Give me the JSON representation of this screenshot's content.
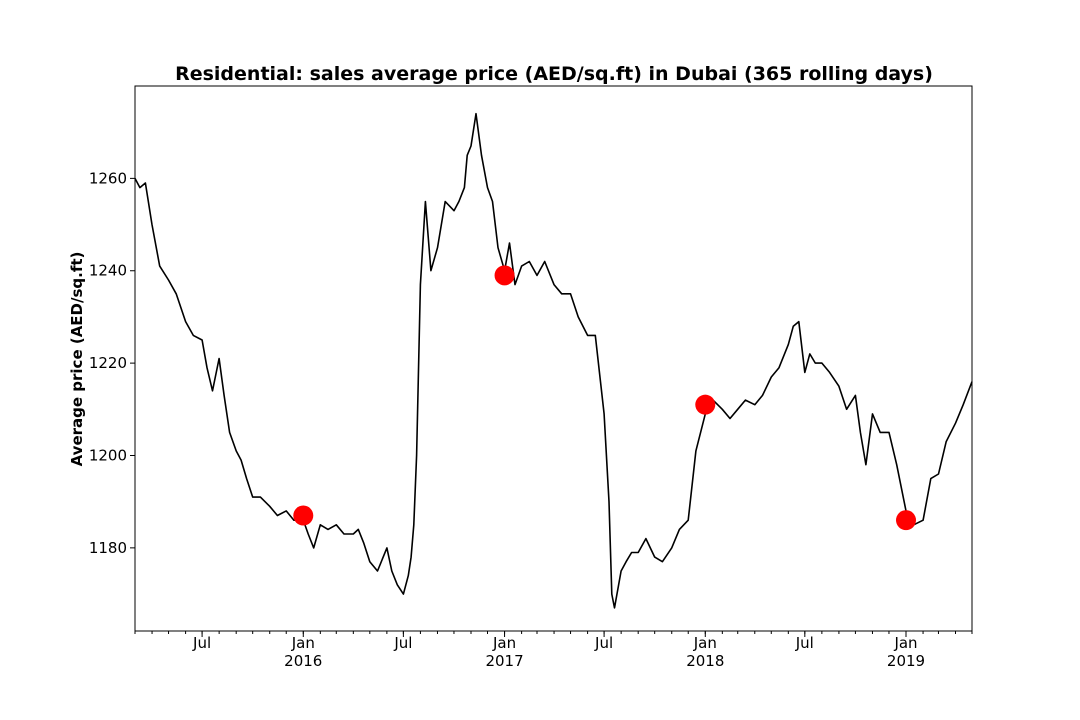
{
  "chart_data": {
    "type": "line",
    "title": "Residential: sales average price (AED/sq.ft) in Dubai (365 rolling days)",
    "xlabel": "",
    "ylabel": "Average price (AED/sq.ft)",
    "xlim": [
      "2015-03-01",
      "2019-05-01"
    ],
    "ylim": [
      1162,
      1280
    ],
    "grid": false,
    "y_ticks": [
      1180,
      1200,
      1220,
      1240,
      1260
    ],
    "x_major_ticks": [
      {
        "date": "2015-07-01",
        "label": "Jul",
        "year": ""
      },
      {
        "date": "2016-01-01",
        "label": "Jan",
        "year": "2016"
      },
      {
        "date": "2016-07-01",
        "label": "Jul",
        "year": ""
      },
      {
        "date": "2017-01-01",
        "label": "Jan",
        "year": "2017"
      },
      {
        "date": "2017-07-01",
        "label": "Jul",
        "year": ""
      },
      {
        "date": "2018-01-01",
        "label": "Jan",
        "year": "2018"
      },
      {
        "date": "2018-07-01",
        "label": "Jul",
        "year": ""
      },
      {
        "date": "2019-01-01",
        "label": "Jan",
        "year": "2019"
      }
    ],
    "series": [
      {
        "color": "#000000",
        "x": [
          "2015-03-01",
          "2015-03-10",
          "2015-03-20",
          "2015-04-01",
          "2015-04-15",
          "2015-05-01",
          "2015-05-15",
          "2015-06-01",
          "2015-06-15",
          "2015-07-01",
          "2015-07-10",
          "2015-07-20",
          "2015-08-01",
          "2015-08-10",
          "2015-08-20",
          "2015-09-01",
          "2015-09-10",
          "2015-09-20",
          "2015-10-01",
          "2015-10-15",
          "2015-11-01",
          "2015-11-15",
          "2015-12-01",
          "2015-12-15",
          "2016-01-01",
          "2016-01-10",
          "2016-01-20",
          "2016-02-01",
          "2016-02-15",
          "2016-03-01",
          "2016-03-15",
          "2016-04-01",
          "2016-04-10",
          "2016-04-20",
          "2016-05-01",
          "2016-05-15",
          "2016-06-01",
          "2016-06-10",
          "2016-06-20",
          "2016-07-01",
          "2016-07-10",
          "2016-07-15",
          "2016-07-20",
          "2016-07-25",
          "2016-08-01",
          "2016-08-10",
          "2016-08-20",
          "2016-09-01",
          "2016-09-15",
          "2016-10-01",
          "2016-10-10",
          "2016-10-20",
          "2016-10-25",
          "2016-11-01",
          "2016-11-10",
          "2016-11-20",
          "2016-12-01",
          "2016-12-10",
          "2016-12-20",
          "2017-01-01",
          "2017-01-10",
          "2017-01-20",
          "2017-02-01",
          "2017-02-15",
          "2017-03-01",
          "2017-03-15",
          "2017-04-01",
          "2017-04-15",
          "2017-05-01",
          "2017-05-15",
          "2017-06-01",
          "2017-06-15",
          "2017-07-01",
          "2017-07-10",
          "2017-07-15",
          "2017-07-20",
          "2017-08-01",
          "2017-08-10",
          "2017-08-20",
          "2017-09-01",
          "2017-09-15",
          "2017-10-01",
          "2017-10-15",
          "2017-11-01",
          "2017-11-15",
          "2017-12-01",
          "2017-12-15",
          "2018-01-01",
          "2018-01-15",
          "2018-02-01",
          "2018-02-15",
          "2018-03-01",
          "2018-03-15",
          "2018-04-01",
          "2018-04-15",
          "2018-05-01",
          "2018-05-15",
          "2018-06-01",
          "2018-06-10",
          "2018-06-20",
          "2018-07-01",
          "2018-07-10",
          "2018-07-20",
          "2018-08-01",
          "2018-08-15",
          "2018-09-01",
          "2018-09-15",
          "2018-10-01",
          "2018-10-10",
          "2018-10-20",
          "2018-11-01",
          "2018-11-15",
          "2018-12-01",
          "2018-12-15",
          "2019-01-01",
          "2019-01-15",
          "2019-02-01",
          "2019-02-15",
          "2019-03-01",
          "2019-03-15",
          "2019-04-01",
          "2019-04-15",
          "2019-05-01"
        ],
        "y": [
          1260,
          1258,
          1259,
          1250,
          1241,
          1238,
          1235,
          1229,
          1226,
          1225,
          1219,
          1214,
          1221,
          1213,
          1205,
          1201,
          1199,
          1195,
          1191,
          1191,
          1189,
          1187,
          1188,
          1186,
          1186,
          1183,
          1180,
          1185,
          1184,
          1185,
          1183,
          1183,
          1184,
          1181,
          1177,
          1175,
          1180,
          1175,
          1172,
          1170,
          1174,
          1178,
          1185,
          1200,
          1237,
          1255,
          1240,
          1245,
          1255,
          1253,
          1255,
          1258,
          1265,
          1267,
          1274,
          1265,
          1258,
          1255,
          1245,
          1240,
          1246,
          1237,
          1241,
          1242,
          1239,
          1242,
          1237,
          1235,
          1235,
          1230,
          1226,
          1226,
          1209,
          1190,
          1170,
          1167,
          1175,
          1177,
          1179,
          1179,
          1182,
          1178,
          1177,
          1180,
          1184,
          1186,
          1201,
          1209,
          1212,
          1210,
          1208,
          1210,
          1212,
          1211,
          1213,
          1217,
          1219,
          1224,
          1228,
          1229,
          1218,
          1222,
          1220,
          1220,
          1218,
          1215,
          1210,
          1213,
          1205,
          1198,
          1209,
          1205,
          1205,
          1198,
          1188,
          1185,
          1186,
          1195,
          1196,
          1203,
          1207,
          1211,
          1216
        ]
      }
    ],
    "highlight_points": [
      {
        "x": "2016-01-01",
        "y": 1187,
        "color": "#ff0000"
      },
      {
        "x": "2017-01-01",
        "y": 1239,
        "color": "#ff0000"
      },
      {
        "x": "2018-01-01",
        "y": 1211,
        "color": "#ff0000"
      },
      {
        "x": "2019-01-01",
        "y": 1186,
        "color": "#ff0000"
      }
    ]
  }
}
